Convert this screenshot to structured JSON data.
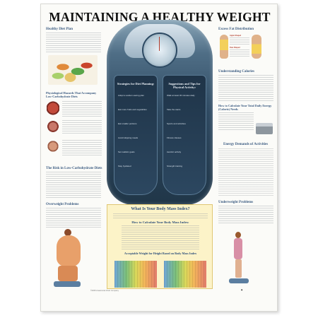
{
  "title": "MAINTAINING A HEALTHY WEIGHT",
  "left": {
    "diet_plan_head": "Healthy Diet Plan",
    "hazards_head": "Physiological Hazards That Accompany Low-Carbohydrate Diets",
    "risk_head": "The Risk in Low-Carbohydrate Diets",
    "overweight_head": "Overweight Problems"
  },
  "right": {
    "fat_head": "Excess Fat Distribution",
    "apple_label": "Apple-Shaped",
    "pear_label": "Pear-Shaped",
    "calories_head": "Understanding Calories",
    "calc_head": "How to Calculate Your Total Daily Energy (Calorie) Needs",
    "energy_head": "Energy Demands of Activities",
    "underweight_head": "Underweight Problems"
  },
  "scale": {
    "left_title": "Strategies for Diet Planning:",
    "right_title": "Suggestions and Tips for Physical Activity:",
    "left_items": [
      "Adopt a sodium-saving plan",
      "Eat more fruits and vegetables",
      "Eat smaller portions",
      "Avoid skipping meals",
      "Set realistic goals",
      "Stay hydrated"
    ],
    "right_items": [
      "Walk at least 30 minutes daily",
      "Take the stairs",
      "Sports and activities",
      "Fitness classes",
      "Aerobic activity",
      "Strength training"
    ]
  },
  "bmi": {
    "title": "What Is Your Body Mass Index?",
    "how_head": "How to Calculate Your Body Mass Index:",
    "chart_title": "Acceptable Weight for Height Based on Body Mass Index"
  },
  "footer": "©2005 Anatomical Chart Company"
}
